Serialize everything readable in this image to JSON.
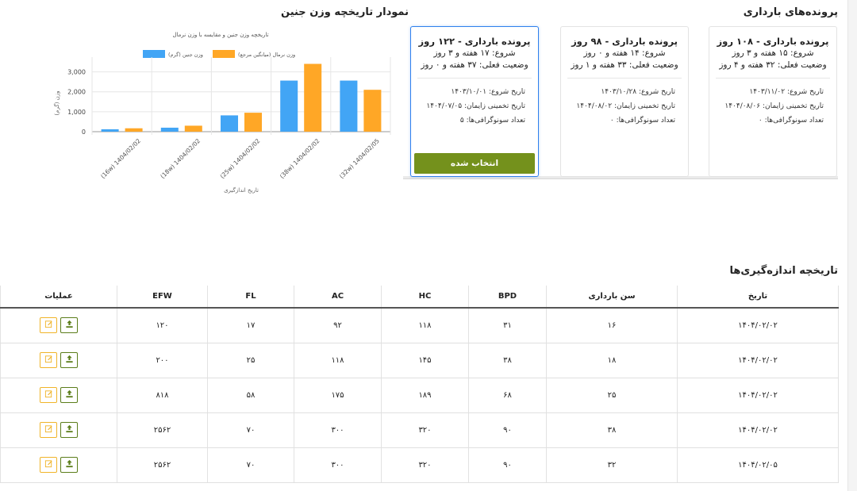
{
  "headings": {
    "records": "پرونده‌های بارداری",
    "chart": "نمودار تاریخچه وزن جنین",
    "history": "تاریخچه اندازه‌گیری‌ها"
  },
  "cards": [
    {
      "title": "پرونده بارداری - ۱۰۸ روز",
      "start": "شروع: ۱۵ هفته و ۳ روز",
      "status": "وضعیت فعلی: ۳۲ هفته و ۴ روز",
      "start_date": "تاریخ شروع: ۱۴۰۳/۱۱/۰۲",
      "due_date": "تاریخ تخمینی زایمان: ۱۴۰۴/۰۸/۰۶",
      "sono_count": "تعداد سونوگرافی‌ها: ۰"
    },
    {
      "title": "پرونده بارداری - ۹۸ روز",
      "start": "شروع: ۱۴ هفته و ۰ روز",
      "status": "وضعیت فعلی: ۳۳ هفته و ۱ روز",
      "start_date": "تاریخ شروع: ۱۴۰۳/۱۰/۲۸",
      "due_date": "تاریخ تخمینی زایمان: ۱۴۰۴/۰۸/۰۲",
      "sono_count": "تعداد سونوگرافی‌ها: ۰"
    },
    {
      "title": "پرونده بارداری - ۱۲۲ روز",
      "start": "شروع: ۱۷ هفته و ۳ روز",
      "status": "وضعیت فعلی: ۳۷ هفته و ۰ روز",
      "start_date": "تاریخ شروع: ۱۴۰۳/۱۰/۰۱",
      "due_date": "تاریخ تخمینی زایمان: ۱۴۰۴/۰۷/۰۵",
      "sono_count": "تعداد سونوگرافی‌ها: ۵",
      "button_label": "انتخاب شده"
    }
  ],
  "chart_data": {
    "type": "bar",
    "title": "تاریخچه وزن جنین و مقایسه با وزن نرمال",
    "xlabel": "تاریخ اندازگیری",
    "ylabel": "وزن (گرم)",
    "categories": [
      "(16w) 1404/02/02",
      "(18w) 1404/02/02",
      "(25w) 1404/02/02",
      "(38w) 1404/02/02",
      "(32w) 1404/02/05"
    ],
    "series": [
      {
        "name": "وزن جنین (گرم)",
        "color": "#42a5f5",
        "values": [
          120,
          200,
          818,
          2562,
          2562
        ]
      },
      {
        "name": "وزن نرمال (میانگین مرجع)",
        "color": "#ffa726",
        "values": [
          170,
          300,
          950,
          3400,
          2100
        ]
      }
    ],
    "yticks": [
      "0",
      "1,000",
      "2,000",
      "3,000"
    ],
    "ylim": [
      0,
      3500
    ],
    "grid": true,
    "legend": "top"
  },
  "table": {
    "headers": [
      "تاریخ",
      "سن بارداری",
      "BPD",
      "HC",
      "AC",
      "FL",
      "EFW",
      "عملیات"
    ],
    "rows": [
      [
        "۱۴۰۴/۰۲/۰۲",
        "۱۶",
        "۳۱",
        "۱۱۸",
        "۹۲",
        "۱۷",
        "۱۲۰"
      ],
      [
        "۱۴۰۴/۰۲/۰۲",
        "۱۸",
        "۳۸",
        "۱۴۵",
        "۱۱۸",
        "۲۵",
        "۲۰۰"
      ],
      [
        "۱۴۰۴/۰۲/۰۲",
        "۲۵",
        "۶۸",
        "۱۸۹",
        "۱۷۵",
        "۵۸",
        "۸۱۸"
      ],
      [
        "۱۴۰۴/۰۲/۰۲",
        "۳۸",
        "۹۰",
        "۳۲۰",
        "۳۰۰",
        "۷۰",
        "۲۵۶۲"
      ],
      [
        "۱۴۰۴/۰۲/۰۵",
        "۳۲",
        "۹۰",
        "۳۲۰",
        "۳۰۰",
        "۷۰",
        "۲۵۶۲"
      ]
    ],
    "row_actions": [
      "upload-icon",
      "edit-icon"
    ]
  },
  "colors": {
    "selected_border": "#2f80ed",
    "selected_button": "#74911c",
    "edit_border": "#f0b429",
    "upload_border": "#5b7d1a"
  }
}
